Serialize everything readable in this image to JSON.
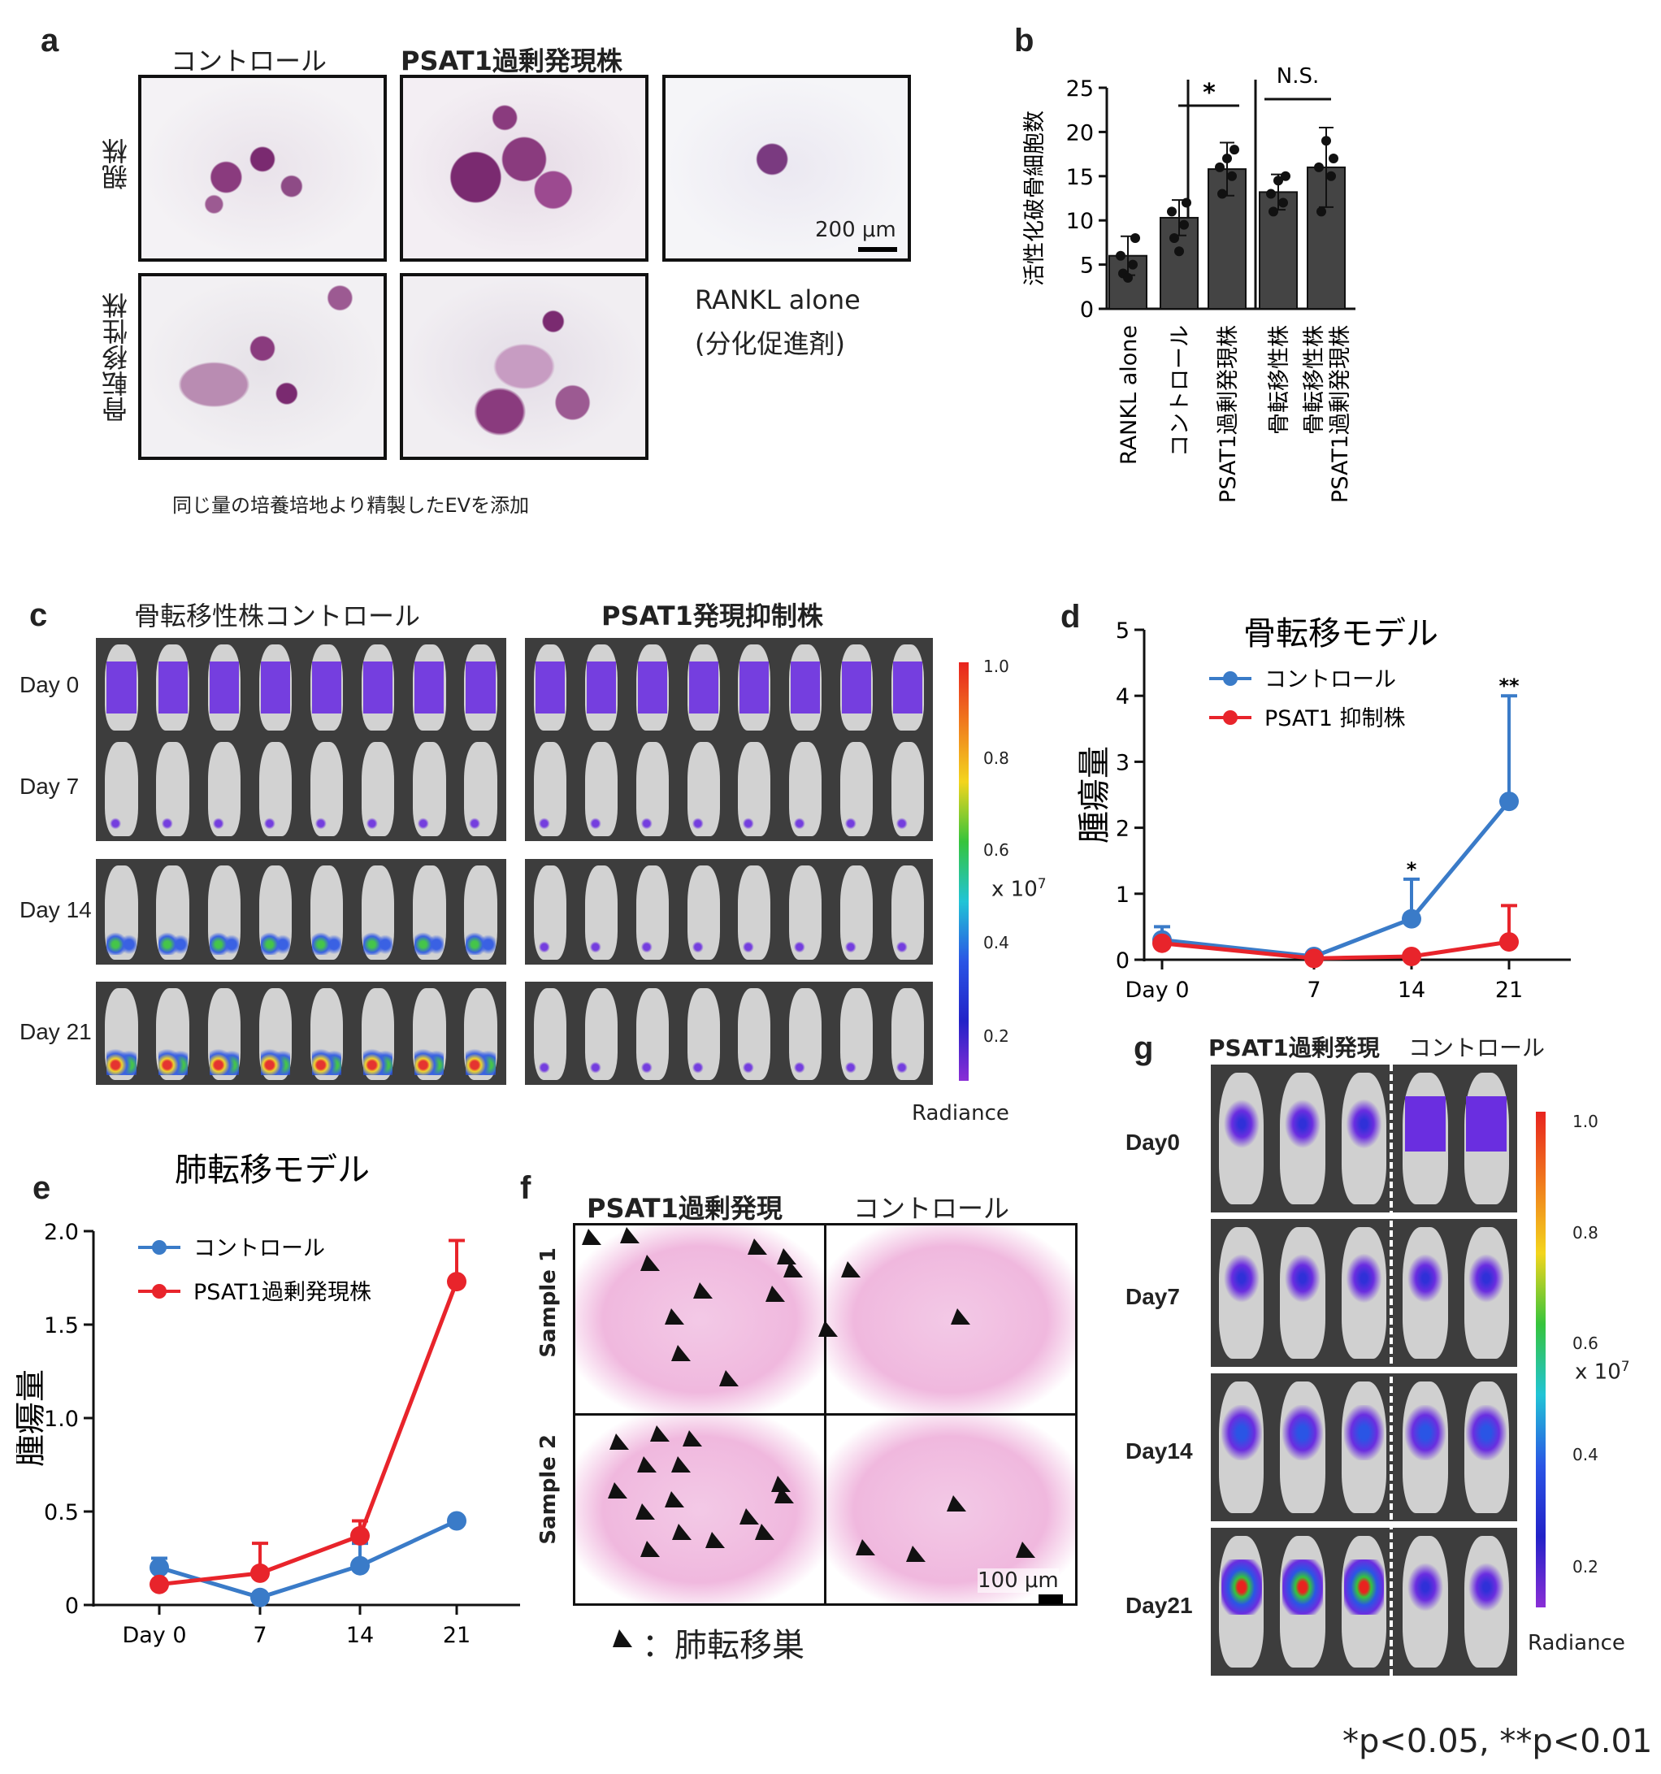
{
  "panel_a": {
    "label": "a",
    "col_control": "コントロール",
    "col_psat1": "PSAT1過剰発現株",
    "row_parent": "親株",
    "row_bone": "骨転移性株",
    "rankl_alone": "RANKL alone",
    "rankl_note": "(分化促進剤)",
    "scale": "200 μm",
    "caption": "同じ量の培養培地より精製したEVを添加"
  },
  "panel_b": {
    "label": "b",
    "ylabel": "活性化破骨細胞数",
    "sig_1": "*",
    "sig_2": "N.S."
  },
  "panel_c": {
    "label": "c",
    "col_control": "骨転移性株コントロール",
    "col_knockdown": "PSAT1発現抑制株",
    "days": [
      "Day 0",
      "Day 7",
      "Day 14",
      "Day 21"
    ],
    "colorbar_ticks": [
      "1.0",
      "0.8",
      "0.6",
      "0.4",
      "0.2"
    ],
    "colorbar_unit": "x 10",
    "colorbar_exp": "7",
    "colorbar_label": "Radiance"
  },
  "panel_d": {
    "label": "d"
  },
  "panel_e": {
    "label": "e"
  },
  "panel_f": {
    "label": "f",
    "col_psat1": "PSAT1過剰発現",
    "col_control": "コントロール",
    "row_1": "Sample 1",
    "row_2": "Sample 2",
    "scale": "100 μm",
    "legend": "：肺転移巣"
  },
  "panel_g": {
    "label": "g",
    "col_psat1": "PSAT1過剰発現",
    "col_control": "コントロール",
    "days": [
      "Day0",
      "Day7",
      "Day14",
      "Day21"
    ],
    "colorbar_ticks": [
      "1.0",
      "0.8",
      "0.6",
      "0.4",
      "0.2"
    ],
    "colorbar_unit": "x 10",
    "colorbar_exp": "7",
    "colorbar_label": "Radiance"
  },
  "footnote": "*p<0.05, **p<0.01",
  "chart_data": [
    {
      "panel": "b",
      "type": "bar",
      "ylabel": "活性化破骨細胞数",
      "ylim": [
        0,
        25
      ],
      "yticks": [
        "0",
        "5",
        "10",
        "15",
        "20",
        "25"
      ],
      "categories": [
        "RANKL alone",
        "コントロール",
        "PSAT1過剰発現株",
        "骨転移性株",
        "骨転移性株\nPSAT1過剰発現株"
      ],
      "values": [
        6,
        10.3,
        15.8,
        13.2,
        16
      ],
      "errors": [
        2.2,
        2.0,
        3.0,
        2.0,
        4.5
      ],
      "points": [
        [
          4,
          5,
          6,
          8,
          3.5
        ],
        [
          8,
          9.5,
          11,
          12,
          6.5
        ],
        [
          13,
          15,
          16,
          18,
          17
        ],
        [
          11,
          12,
          13,
          15,
          14.5
        ],
        [
          11,
          15,
          16,
          17,
          19
        ]
      ],
      "bar_color": "#444444"
    },
    {
      "panel": "d",
      "type": "line",
      "title": "骨転移モデル",
      "ylabel": "腫瘍量",
      "x": [
        "Day 0",
        "7",
        "14",
        "21"
      ],
      "ylim": [
        0,
        5
      ],
      "yticks": [
        "0",
        "1",
        "2",
        "3",
        "4",
        "5"
      ],
      "series": [
        {
          "name": "コントロール",
          "color": "#3a7bc8",
          "values": [
            0.3,
            0.05,
            0.62,
            2.4
          ],
          "errors": [
            0.2,
            0,
            0.6,
            1.6
          ],
          "sig": [
            "",
            "",
            "*",
            "**"
          ]
        },
        {
          "name": "PSAT1 抑制株",
          "color": "#e8242b",
          "values": [
            0.25,
            0.02,
            0.05,
            0.27
          ],
          "errors": [
            0.05,
            0,
            0,
            0.55
          ],
          "sig": [
            "",
            "",
            "",
            ""
          ]
        }
      ]
    },
    {
      "panel": "e",
      "type": "line",
      "title": "肺転移モデル",
      "ylabel": "腫瘍量",
      "x": [
        "Day 0",
        "7",
        "14",
        "21"
      ],
      "ylim": [
        0,
        2.0
      ],
      "yticks": [
        "0",
        "0.5",
        "1.0",
        "1.5",
        "2.0"
      ],
      "series": [
        {
          "name": "コントロール",
          "color": "#3a7bc8",
          "values": [
            0.2,
            0.04,
            0.21,
            0.45
          ],
          "errors": [
            0.05,
            0,
            0.12,
            0
          ],
          "sig": [
            "",
            "",
            "",
            ""
          ]
        },
        {
          "name": "PSAT1過剰発現株",
          "color": "#e8242b",
          "values": [
            0.11,
            0.17,
            0.37,
            1.73
          ],
          "errors": [
            0,
            0.16,
            0.08,
            0.22
          ],
          "sig": [
            "",
            "",
            "",
            ""
          ]
        }
      ]
    }
  ]
}
